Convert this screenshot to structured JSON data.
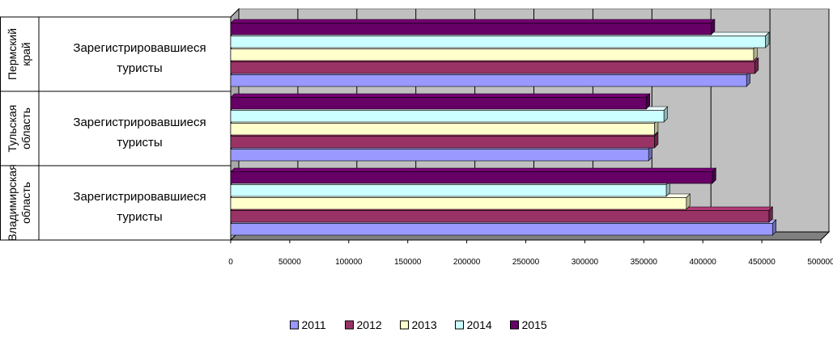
{
  "chart_data": {
    "type": "bar",
    "orientation": "horizontal",
    "three_d": true,
    "groups": [
      {
        "region": [
          "Пермский",
          "край"
        ],
        "category": [
          "Зарегистрировавшиеся",
          "туристы"
        ]
      },
      {
        "region": [
          "Тульская",
          "область"
        ],
        "category": [
          "Зарегистрировавшиеся",
          "туристы"
        ]
      },
      {
        "region": [
          "Владимирская",
          "область"
        ],
        "category": [
          "Зарегистрировавшиеся",
          "туристы"
        ]
      }
    ],
    "series": [
      {
        "name": "2011",
        "color": "#9999ff",
        "values": [
          437000,
          354000,
          459000
        ]
      },
      {
        "name": "2012",
        "color": "#993366",
        "values": [
          444000,
          359000,
          456000
        ]
      },
      {
        "name": "2013",
        "color": "#ffffcc",
        "values": [
          443000,
          359000,
          386000
        ]
      },
      {
        "name": "2014",
        "color": "#ccffff",
        "values": [
          453000,
          367000,
          369000
        ]
      },
      {
        "name": "2015",
        "color": "#660066",
        "values": [
          407000,
          352000,
          408000
        ]
      }
    ],
    "xlim": [
      0,
      500000
    ],
    "xticks": [
      "0",
      "50000",
      "100000",
      "150000",
      "200000",
      "250000",
      "300000",
      "350000",
      "400000",
      "450000",
      "500000"
    ],
    "grid": true,
    "legend_position": "bottom",
    "background_color": "#c0c0c0"
  }
}
